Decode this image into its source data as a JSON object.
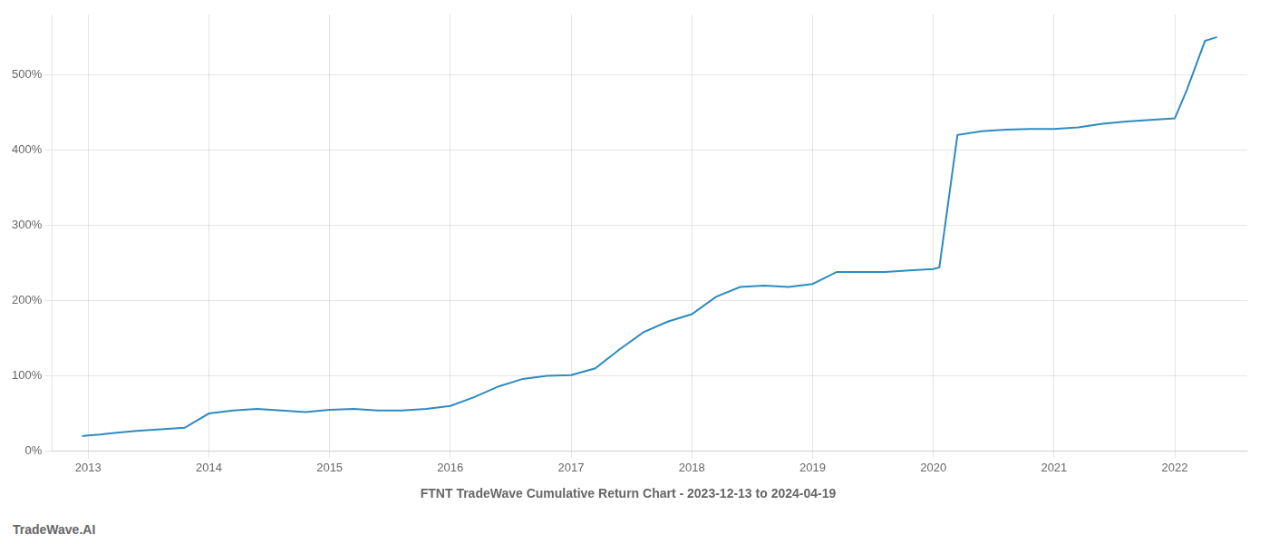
{
  "chart_data": {
    "type": "line",
    "title": "FTNT TradeWave Cumulative Return Chart - 2023-12-13 to 2024-04-19",
    "annotations": [
      "TradeWave.AI"
    ],
    "x": [
      2012.95,
      2013.0,
      2013.1,
      2013.2,
      2013.4,
      2013.6,
      2013.8,
      2014.0,
      2014.2,
      2014.4,
      2014.6,
      2014.8,
      2015.0,
      2015.2,
      2015.4,
      2015.6,
      2015.8,
      2016.0,
      2016.2,
      2016.4,
      2016.6,
      2016.8,
      2017.0,
      2017.2,
      2017.4,
      2017.6,
      2017.8,
      2018.0,
      2018.2,
      2018.4,
      2018.6,
      2018.8,
      2019.0,
      2019.1,
      2019.2,
      2019.4,
      2019.6,
      2019.8,
      2020.0,
      2020.05,
      2020.2,
      2020.4,
      2020.6,
      2020.8,
      2021.0,
      2021.2,
      2021.4,
      2021.6,
      2021.8,
      2022.0,
      2022.1,
      2022.25,
      2022.35
    ],
    "values": [
      0.2,
      0.21,
      0.22,
      0.24,
      0.27,
      0.29,
      0.31,
      0.5,
      0.54,
      0.56,
      0.54,
      0.52,
      0.55,
      0.56,
      0.54,
      0.54,
      0.56,
      0.6,
      0.72,
      0.86,
      0.96,
      1.0,
      1.01,
      1.1,
      1.35,
      1.58,
      1.72,
      1.82,
      2.05,
      2.18,
      2.2,
      2.18,
      2.22,
      2.3,
      2.38,
      2.38,
      2.38,
      2.4,
      2.42,
      2.44,
      4.2,
      4.25,
      4.27,
      4.28,
      4.28,
      4.3,
      4.35,
      4.38,
      4.4,
      4.42,
      4.8,
      5.45,
      5.5
    ],
    "color": "#2e8bc0",
    "xlim": [
      2012.7,
      2022.6
    ],
    "xticks": [
      2013,
      2014,
      2015,
      2016,
      2017,
      2018,
      2019,
      2020,
      2021,
      2022
    ],
    "ylim": [
      0.0,
      5.8
    ],
    "yticks": [
      {
        "value": 0.0,
        "label": "0%"
      },
      {
        "value": 1.0,
        "label": "100%"
      },
      {
        "value": 2.0,
        "label": "200%"
      },
      {
        "value": 3.0,
        "label": "300%"
      },
      {
        "value": 4.0,
        "label": "400%"
      },
      {
        "value": 5.0,
        "label": "500%"
      }
    ],
    "grid": true
  }
}
